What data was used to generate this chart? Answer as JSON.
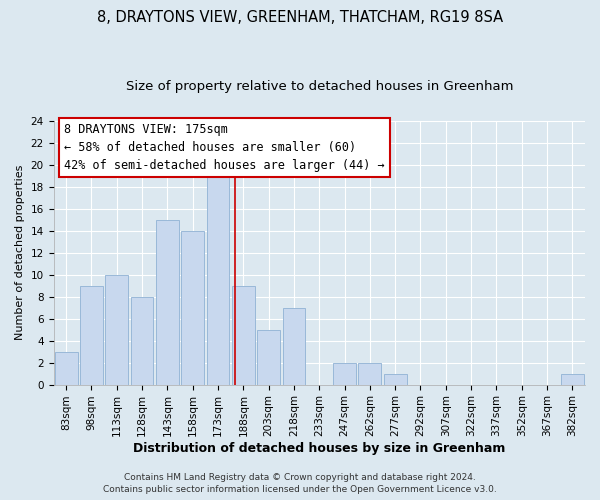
{
  "title": "8, DRAYTONS VIEW, GREENHAM, THATCHAM, RG19 8SA",
  "subtitle": "Size of property relative to detached houses in Greenham",
  "xlabel": "Distribution of detached houses by size in Greenham",
  "ylabel": "Number of detached properties",
  "bar_color": "#c8d8ee",
  "bar_edge_color": "#99b8d8",
  "bin_labels": [
    "83sqm",
    "98sqm",
    "113sqm",
    "128sqm",
    "143sqm",
    "158sqm",
    "173sqm",
    "188sqm",
    "203sqm",
    "218sqm",
    "233sqm",
    "247sqm",
    "262sqm",
    "277sqm",
    "292sqm",
    "307sqm",
    "322sqm",
    "337sqm",
    "352sqm",
    "367sqm",
    "382sqm"
  ],
  "values": [
    3,
    9,
    10,
    8,
    15,
    14,
    19,
    9,
    5,
    7,
    0,
    2,
    2,
    1,
    0,
    0,
    0,
    0,
    0,
    0,
    1
  ],
  "ylim": [
    0,
    24
  ],
  "yticks": [
    0,
    2,
    4,
    6,
    8,
    10,
    12,
    14,
    16,
    18,
    20,
    22,
    24
  ],
  "property_label_line1": "8 DRAYTONS VIEW: 175sqm",
  "annotation_line2": "← 58% of detached houses are smaller (60)",
  "annotation_line3": "42% of semi-detached houses are larger (44) →",
  "annotation_box_color": "#ffffff",
  "annotation_box_edge_color": "#cc0000",
  "red_line_x": 6.667,
  "footer1": "Contains HM Land Registry data © Crown copyright and database right 2024.",
  "footer2": "Contains public sector information licensed under the Open Government Licence v3.0.",
  "background_color": "#dce8f0",
  "plot_bg_color": "#dce8f0",
  "title_fontsize": 10.5,
  "subtitle_fontsize": 9.5,
  "xlabel_fontsize": 9,
  "ylabel_fontsize": 8,
  "tick_fontsize": 7.5,
  "annotation_fontsize": 8.5,
  "footer_fontsize": 6.5
}
